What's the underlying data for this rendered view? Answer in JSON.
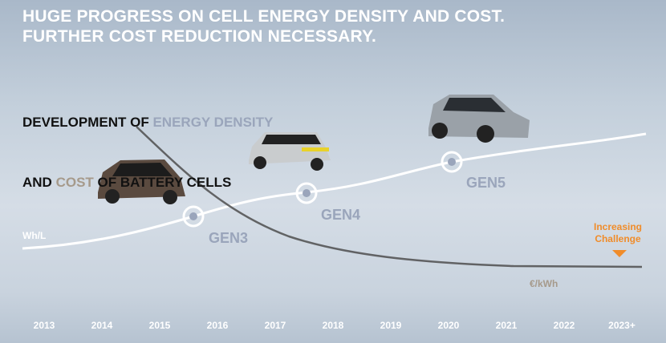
{
  "header": {
    "title": [
      "HUGE PROGRESS ON CELL ENERGY DENSITY AND COST.",
      "FURTHER COST REDUCTION NECESSARY."
    ]
  },
  "subtitle": {
    "lines": [
      [
        "DEVELOPMENT OF ",
        "ENERGY DENSITY"
      ],
      [
        "AND ",
        "COST",
        " OF BATTERY CELLS"
      ]
    ]
  },
  "generations": [
    "GEN3",
    "GEN4",
    "GEN5"
  ],
  "axis_labels": {
    "energy": "Wh/L",
    "cost": "€/kWh"
  },
  "annotation": [
    "Increasing",
    "Challenge"
  ],
  "years": [
    "2013",
    "2014",
    "2015",
    "2016",
    "2017",
    "2018",
    "2019",
    "2020",
    "2021",
    "2022",
    "2023+"
  ]
}
